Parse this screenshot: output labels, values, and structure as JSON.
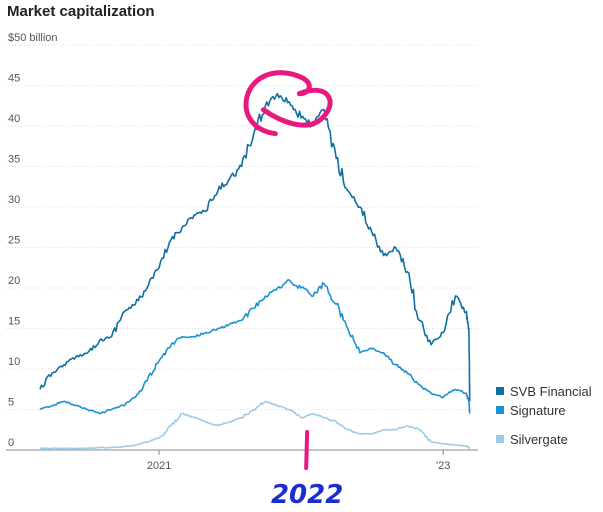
{
  "title": "Market capitalization",
  "chart_data": {
    "type": "line",
    "title": "Market capitalization",
    "xlabel": "",
    "ylabel": "",
    "ylim": [
      0,
      50
    ],
    "xlim": [
      "2020-03",
      "2023-03-16"
    ],
    "grid": true,
    "legend_position": "right, at series end",
    "y_ticks": [
      {
        "value": 50,
        "label": "$50 billion"
      },
      {
        "value": 45,
        "label": "45"
      },
      {
        "value": 40,
        "label": "40"
      },
      {
        "value": 35,
        "label": "35"
      },
      {
        "value": 30,
        "label": "30"
      },
      {
        "value": 25,
        "label": "25"
      },
      {
        "value": 20,
        "label": "20"
      },
      {
        "value": 15,
        "label": "15"
      },
      {
        "value": 10,
        "label": "10"
      },
      {
        "value": 5,
        "label": "5"
      },
      {
        "value": 0,
        "label": "0"
      }
    ],
    "x_ticks": [
      {
        "value": "2021-01",
        "label": "2021"
      },
      {
        "value": "2023-01",
        "label": "'23"
      }
    ],
    "series": [
      {
        "name": "SVB Financial",
        "color": "#0f6fa3",
        "x": [
          "2020-03",
          "2020-04",
          "2020-05",
          "2020-06",
          "2020-07",
          "2020-08",
          "2020-09",
          "2020-10",
          "2020-11",
          "2020-12",
          "2021-01",
          "2021-02",
          "2021-03",
          "2021-04",
          "2021-05",
          "2021-06",
          "2021-07",
          "2021-08",
          "2021-09",
          "2021-10",
          "2021-11",
          "2021-12",
          "2022-01",
          "2022-02",
          "2022-03",
          "2022-04",
          "2022-05",
          "2022-06",
          "2022-07",
          "2022-08",
          "2022-09",
          "2022-10",
          "2022-11",
          "2022-12",
          "2023-01",
          "2023-02",
          "2023-03-01",
          "2023-03-08",
          "2023-03-10"
        ],
        "values": [
          7.5,
          9.5,
          10.5,
          11.5,
          12,
          13.5,
          14,
          17,
          18,
          20,
          22.5,
          26,
          27.5,
          29,
          29.5,
          32,
          33.5,
          35,
          39,
          42.5,
          44,
          43,
          41,
          40,
          42,
          36,
          32,
          30,
          27,
          24,
          25,
          22,
          16,
          13,
          14.5,
          19,
          17,
          15,
          6
        ]
      },
      {
        "name": "Signature",
        "color": "#1a93d0",
        "x": [
          "2020-03",
          "2020-04",
          "2020-05",
          "2020-06",
          "2020-07",
          "2020-08",
          "2020-09",
          "2020-10",
          "2020-11",
          "2020-12",
          "2021-01",
          "2021-02",
          "2021-03",
          "2021-04",
          "2021-05",
          "2021-06",
          "2021-07",
          "2021-08",
          "2021-09",
          "2021-10",
          "2021-11",
          "2021-12",
          "2022-01",
          "2022-02",
          "2022-03",
          "2022-04",
          "2022-05",
          "2022-06",
          "2022-07",
          "2022-08",
          "2022-09",
          "2022-10",
          "2022-11",
          "2022-12",
          "2023-01",
          "2023-02",
          "2023-03-01",
          "2023-03-08",
          "2023-03-10"
        ],
        "values": [
          5,
          5.5,
          6,
          5.5,
          5,
          4.5,
          5,
          5.5,
          6.5,
          8.5,
          11,
          13,
          14,
          14,
          14.5,
          15,
          15.5,
          16,
          17.5,
          19,
          20,
          21,
          20,
          19,
          20.5,
          18,
          15,
          12,
          12.5,
          12,
          10.5,
          9.5,
          8,
          7,
          6.5,
          7.5,
          7,
          6,
          4.5
        ]
      },
      {
        "name": "Silvergate",
        "color": "#9dcbe8",
        "x": [
          "2020-03",
          "2020-04",
          "2020-05",
          "2020-06",
          "2020-07",
          "2020-08",
          "2020-09",
          "2020-10",
          "2020-11",
          "2020-12",
          "2021-01",
          "2021-02",
          "2021-03",
          "2021-04",
          "2021-05",
          "2021-06",
          "2021-07",
          "2021-08",
          "2021-09",
          "2021-10",
          "2021-11",
          "2021-12",
          "2022-01",
          "2022-02",
          "2022-03",
          "2022-04",
          "2022-05",
          "2022-06",
          "2022-07",
          "2022-08",
          "2022-09",
          "2022-10",
          "2022-11",
          "2022-12",
          "2023-01",
          "2023-02",
          "2023-03-01",
          "2023-03-08",
          "2023-03-10"
        ],
        "values": [
          0.2,
          0.2,
          0.2,
          0.2,
          0.2,
          0.3,
          0.3,
          0.4,
          0.6,
          1,
          1.5,
          3,
          4.5,
          4,
          3.5,
          3,
          3.5,
          4,
          5,
          6,
          5.5,
          5,
          4,
          4.5,
          4,
          3.5,
          2.5,
          2,
          2,
          2.5,
          2.5,
          3,
          2.5,
          1,
          0.8,
          0.6,
          0.5,
          0.3,
          0.2
        ]
      }
    ],
    "annotations": [
      {
        "type": "handwritten-circle",
        "color": "#e8197e",
        "around_date": "2021-11",
        "around_value": 43
      },
      {
        "type": "handwritten-mark",
        "color": "#e8197e",
        "at_date": "2022-01"
      },
      {
        "type": "handwritten-text",
        "text": "2022",
        "color": "#1b2cd0",
        "at_date": "2022-01"
      }
    ]
  }
}
